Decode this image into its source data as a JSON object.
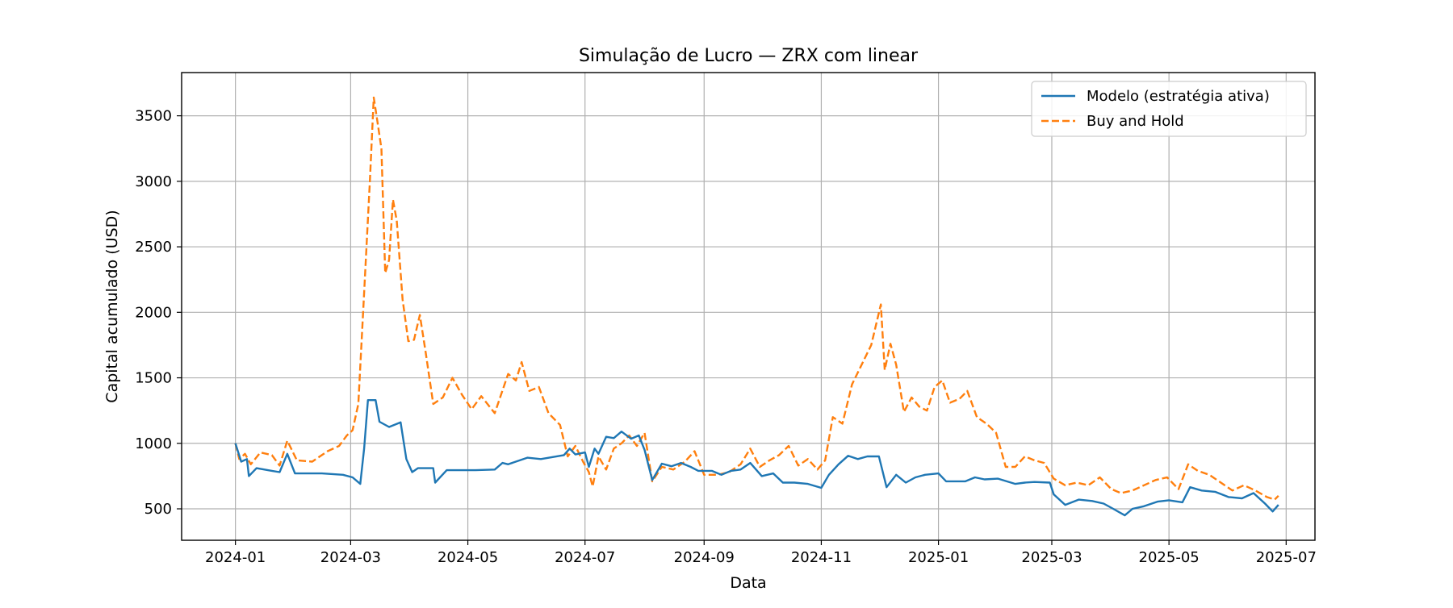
{
  "chart_data": {
    "type": "line",
    "title": "Simulação de Lucro — ZRX com linear",
    "xlabel": "Data",
    "ylabel": "Capital acumulado (USD)",
    "xlim": [
      "2023-12-04",
      "2025-07-16"
    ],
    "ylim": [
      260,
      3830
    ],
    "x_ticks": [
      "2024-01",
      "2024-03",
      "2024-05",
      "2024-07",
      "2024-09",
      "2024-11",
      "2025-01",
      "2025-03",
      "2025-05",
      "2025-07"
    ],
    "x_tick_dates": [
      "2024-01-01",
      "2024-03-01",
      "2024-05-01",
      "2024-07-01",
      "2024-09-01",
      "2024-11-01",
      "2025-01-01",
      "2025-03-01",
      "2025-05-01",
      "2025-07-01"
    ],
    "y_ticks": [
      500,
      1000,
      1500,
      2000,
      2500,
      3000,
      3500
    ],
    "grid": true,
    "legend_position": "top-right",
    "series": [
      {
        "name": "Modelo (estratégia ativa)",
        "color": "#1f77b4",
        "dash": "solid",
        "points": [
          [
            "2024-01-01",
            1000
          ],
          [
            "2024-01-04",
            860
          ],
          [
            "2024-01-07",
            880
          ],
          [
            "2024-01-08",
            750
          ],
          [
            "2024-01-12",
            810
          ],
          [
            "2024-01-20",
            790
          ],
          [
            "2024-01-24",
            780
          ],
          [
            "2024-01-28",
            920
          ],
          [
            "2024-02-01",
            770
          ],
          [
            "2024-02-15",
            770
          ],
          [
            "2024-02-26",
            760
          ],
          [
            "2024-03-02",
            740
          ],
          [
            "2024-03-06",
            690
          ],
          [
            "2024-03-08",
            960
          ],
          [
            "2024-03-10",
            1330
          ],
          [
            "2024-03-14",
            1330
          ],
          [
            "2024-03-16",
            1165
          ],
          [
            "2024-03-21",
            1125
          ],
          [
            "2024-03-27",
            1160
          ],
          [
            "2024-03-30",
            880
          ],
          [
            "2024-04-02",
            780
          ],
          [
            "2024-04-05",
            810
          ],
          [
            "2024-04-13",
            810
          ],
          [
            "2024-04-14",
            700
          ],
          [
            "2024-04-20",
            795
          ],
          [
            "2024-05-05",
            795
          ],
          [
            "2024-05-15",
            800
          ],
          [
            "2024-05-19",
            850
          ],
          [
            "2024-05-22",
            840
          ],
          [
            "2024-06-01",
            890
          ],
          [
            "2024-06-08",
            880
          ],
          [
            "2024-06-20",
            910
          ],
          [
            "2024-06-23",
            960
          ],
          [
            "2024-06-26",
            915
          ],
          [
            "2024-07-01",
            930
          ],
          [
            "2024-07-03",
            820
          ],
          [
            "2024-07-06",
            960
          ],
          [
            "2024-07-08",
            920
          ],
          [
            "2024-07-12",
            1050
          ],
          [
            "2024-07-16",
            1040
          ],
          [
            "2024-07-20",
            1090
          ],
          [
            "2024-07-25",
            1035
          ],
          [
            "2024-07-29",
            1060
          ],
          [
            "2024-08-01",
            950
          ],
          [
            "2024-08-05",
            720
          ],
          [
            "2024-08-10",
            845
          ],
          [
            "2024-08-15",
            825
          ],
          [
            "2024-08-20",
            850
          ],
          [
            "2024-08-25",
            820
          ],
          [
            "2024-08-29",
            790
          ],
          [
            "2024-09-05",
            790
          ],
          [
            "2024-09-10",
            760
          ],
          [
            "2024-09-15",
            790
          ],
          [
            "2024-09-20",
            800
          ],
          [
            "2024-09-25",
            850
          ],
          [
            "2024-10-01",
            750
          ],
          [
            "2024-10-07",
            770
          ],
          [
            "2024-10-12",
            700
          ],
          [
            "2024-10-18",
            700
          ],
          [
            "2024-10-25",
            690
          ],
          [
            "2024-11-01",
            660
          ],
          [
            "2024-11-05",
            760
          ],
          [
            "2024-11-10",
            840
          ],
          [
            "2024-11-15",
            905
          ],
          [
            "2024-11-20",
            880
          ],
          [
            "2024-11-25",
            900
          ],
          [
            "2024-12-01",
            900
          ],
          [
            "2024-12-05",
            665
          ],
          [
            "2024-12-10",
            760
          ],
          [
            "2024-12-15",
            700
          ],
          [
            "2024-12-20",
            740
          ],
          [
            "2024-12-25",
            760
          ],
          [
            "2025-01-01",
            770
          ],
          [
            "2025-01-05",
            710
          ],
          [
            "2025-01-15",
            710
          ],
          [
            "2025-01-20",
            740
          ],
          [
            "2025-01-25",
            725
          ],
          [
            "2025-02-01",
            730
          ],
          [
            "2025-02-10",
            690
          ],
          [
            "2025-02-15",
            700
          ],
          [
            "2025-02-20",
            705
          ],
          [
            "2025-02-28",
            700
          ],
          [
            "2025-03-02",
            610
          ],
          [
            "2025-03-08",
            530
          ],
          [
            "2025-03-15",
            570
          ],
          [
            "2025-03-22",
            560
          ],
          [
            "2025-03-28",
            540
          ],
          [
            "2025-04-02",
            500
          ],
          [
            "2025-04-08",
            450
          ],
          [
            "2025-04-12",
            500
          ],
          [
            "2025-04-18",
            520
          ],
          [
            "2025-04-25",
            555
          ],
          [
            "2025-05-01",
            565
          ],
          [
            "2025-05-08",
            550
          ],
          [
            "2025-05-12",
            665
          ],
          [
            "2025-05-18",
            640
          ],
          [
            "2025-05-25",
            630
          ],
          [
            "2025-06-01",
            590
          ],
          [
            "2025-06-08",
            580
          ],
          [
            "2025-06-14",
            620
          ],
          [
            "2025-06-20",
            540
          ],
          [
            "2025-06-24",
            480
          ],
          [
            "2025-06-27",
            530
          ]
        ]
      },
      {
        "name": "Buy and Hold",
        "color": "#ff7f0e",
        "dash": "dashed",
        "points": [
          [
            "2024-01-01",
            1000
          ],
          [
            "2024-01-03",
            880
          ],
          [
            "2024-01-06",
            920
          ],
          [
            "2024-01-09",
            840
          ],
          [
            "2024-01-14",
            930
          ],
          [
            "2024-01-20",
            910
          ],
          [
            "2024-01-24",
            830
          ],
          [
            "2024-01-28",
            1020
          ],
          [
            "2024-02-02",
            870
          ],
          [
            "2024-02-10",
            860
          ],
          [
            "2024-02-18",
            940
          ],
          [
            "2024-02-24",
            980
          ],
          [
            "2024-02-28",
            1060
          ],
          [
            "2024-03-02",
            1100
          ],
          [
            "2024-03-05",
            1300
          ],
          [
            "2024-03-08",
            2150
          ],
          [
            "2024-03-11",
            3000
          ],
          [
            "2024-03-13",
            3640
          ],
          [
            "2024-03-15",
            3450
          ],
          [
            "2024-03-17",
            3250
          ],
          [
            "2024-03-19",
            2300
          ],
          [
            "2024-03-21",
            2400
          ],
          [
            "2024-03-23",
            2860
          ],
          [
            "2024-03-25",
            2700
          ],
          [
            "2024-03-28",
            2100
          ],
          [
            "2024-03-31",
            1780
          ],
          [
            "2024-04-03",
            1790
          ],
          [
            "2024-04-06",
            1980
          ],
          [
            "2024-04-09",
            1700
          ],
          [
            "2024-04-13",
            1300
          ],
          [
            "2024-04-18",
            1350
          ],
          [
            "2024-04-23",
            1500
          ],
          [
            "2024-04-28",
            1370
          ],
          [
            "2024-05-03",
            1260
          ],
          [
            "2024-05-08",
            1360
          ],
          [
            "2024-05-15",
            1230
          ],
          [
            "2024-05-22",
            1530
          ],
          [
            "2024-05-26",
            1480
          ],
          [
            "2024-05-29",
            1620
          ],
          [
            "2024-06-02",
            1400
          ],
          [
            "2024-06-07",
            1430
          ],
          [
            "2024-06-12",
            1230
          ],
          [
            "2024-06-18",
            1140
          ],
          [
            "2024-06-22",
            900
          ],
          [
            "2024-06-26",
            980
          ],
          [
            "2024-06-30",
            860
          ],
          [
            "2024-07-03",
            780
          ],
          [
            "2024-07-05",
            670
          ],
          [
            "2024-07-08",
            900
          ],
          [
            "2024-07-12",
            800
          ],
          [
            "2024-07-16",
            960
          ],
          [
            "2024-07-20",
            1000
          ],
          [
            "2024-07-24",
            1060
          ],
          [
            "2024-07-28",
            980
          ],
          [
            "2024-08-01",
            1080
          ],
          [
            "2024-08-05",
            710
          ],
          [
            "2024-08-10",
            820
          ],
          [
            "2024-08-16",
            800
          ],
          [
            "2024-08-22",
            860
          ],
          [
            "2024-08-27",
            940
          ],
          [
            "2024-09-01",
            760
          ],
          [
            "2024-09-08",
            760
          ],
          [
            "2024-09-14",
            780
          ],
          [
            "2024-09-20",
            840
          ],
          [
            "2024-09-25",
            960
          ],
          [
            "2024-09-30",
            820
          ],
          [
            "2024-10-05",
            870
          ],
          [
            "2024-10-10",
            910
          ],
          [
            "2024-10-15",
            980
          ],
          [
            "2024-10-20",
            830
          ],
          [
            "2024-10-25",
            880
          ],
          [
            "2024-10-30",
            800
          ],
          [
            "2024-11-03",
            870
          ],
          [
            "2024-11-07",
            1200
          ],
          [
            "2024-11-12",
            1150
          ],
          [
            "2024-11-17",
            1450
          ],
          [
            "2024-11-22",
            1600
          ],
          [
            "2024-11-27",
            1750
          ],
          [
            "2024-12-02",
            2060
          ],
          [
            "2024-12-04",
            1560
          ],
          [
            "2024-12-07",
            1760
          ],
          [
            "2024-12-10",
            1600
          ],
          [
            "2024-12-14",
            1240
          ],
          [
            "2024-12-18",
            1350
          ],
          [
            "2024-12-22",
            1280
          ],
          [
            "2024-12-26",
            1250
          ],
          [
            "2024-12-30",
            1430
          ],
          [
            "2025-01-03",
            1480
          ],
          [
            "2025-01-07",
            1310
          ],
          [
            "2025-01-12",
            1340
          ],
          [
            "2025-01-16",
            1400
          ],
          [
            "2025-01-21",
            1200
          ],
          [
            "2025-01-26",
            1150
          ],
          [
            "2025-01-31",
            1080
          ],
          [
            "2025-02-05",
            820
          ],
          [
            "2025-02-10",
            820
          ],
          [
            "2025-02-15",
            900
          ],
          [
            "2025-02-20",
            870
          ],
          [
            "2025-02-25",
            850
          ],
          [
            "2025-03-02",
            730
          ],
          [
            "2025-03-08",
            680
          ],
          [
            "2025-03-14",
            700
          ],
          [
            "2025-03-20",
            680
          ],
          [
            "2025-03-26",
            740
          ],
          [
            "2025-04-01",
            650
          ],
          [
            "2025-04-06",
            620
          ],
          [
            "2025-04-12",
            640
          ],
          [
            "2025-04-18",
            680
          ],
          [
            "2025-04-24",
            720
          ],
          [
            "2025-04-30",
            740
          ],
          [
            "2025-05-06",
            650
          ],
          [
            "2025-05-11",
            840
          ],
          [
            "2025-05-16",
            790
          ],
          [
            "2025-05-22",
            760
          ],
          [
            "2025-05-28",
            700
          ],
          [
            "2025-06-03",
            640
          ],
          [
            "2025-06-09",
            680
          ],
          [
            "2025-06-15",
            640
          ],
          [
            "2025-06-21",
            590
          ],
          [
            "2025-06-25",
            570
          ],
          [
            "2025-06-27",
            600
          ]
        ]
      }
    ]
  }
}
